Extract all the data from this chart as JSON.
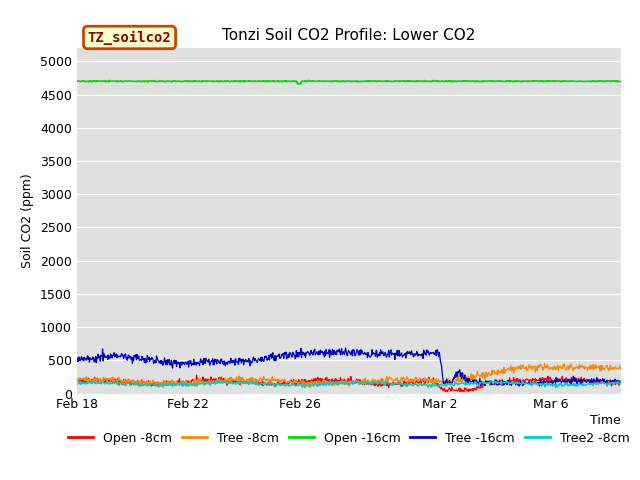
{
  "title": "Tonzi Soil CO2 Profile: Lower CO2",
  "xlabel": "Time",
  "ylabel": "Soil CO2 (ppm)",
  "ylim": [
    0,
    5200
  ],
  "yticks": [
    0,
    500,
    1000,
    1500,
    2000,
    2500,
    3000,
    3500,
    4000,
    4500,
    5000
  ],
  "bg_color": "#e0e0e0",
  "fig_color": "#ffffff",
  "legend_box_label": "TZ_soilco2",
  "legend_box_bg": "#ffffcc",
  "legend_box_edge": "#cc4400",
  "series": {
    "open8": {
      "label": "Open -8cm",
      "color": "#ff0000"
    },
    "tree8": {
      "label": "Tree -8cm",
      "color": "#ff8800"
    },
    "open16": {
      "label": "Open -16cm",
      "color": "#00dd00"
    },
    "tree16": {
      "label": "Tree -16cm",
      "color": "#0000cc"
    },
    "tree28": {
      "label": "Tree2 -8cm",
      "color": "#00cccc"
    }
  },
  "xtick_labels": [
    "Feb 18",
    "Feb 22",
    "Feb 26",
    "Mar 2",
    "Mar 6"
  ],
  "xtick_days": [
    0,
    4,
    8,
    13,
    17
  ],
  "xlim": [
    0,
    19.5
  ],
  "title_fontsize": 11,
  "tick_fontsize": 9,
  "ylabel_fontsize": 9
}
